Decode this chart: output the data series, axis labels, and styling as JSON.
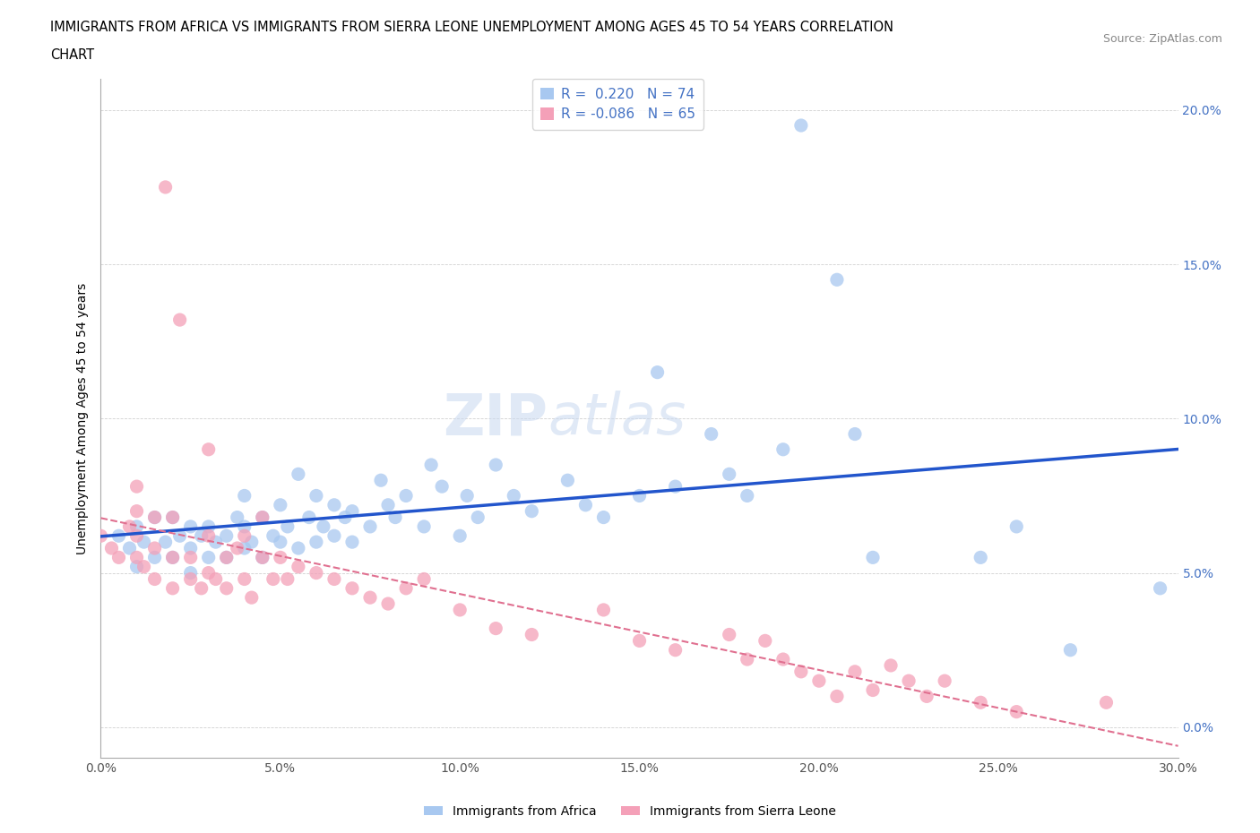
{
  "title_line1": "IMMIGRANTS FROM AFRICA VS IMMIGRANTS FROM SIERRA LEONE UNEMPLOYMENT AMONG AGES 45 TO 54 YEARS CORRELATION",
  "title_line2": "CHART",
  "source": "Source: ZipAtlas.com",
  "ylabel": "Unemployment Among Ages 45 to 54 years",
  "xlim": [
    0.0,
    0.3
  ],
  "ylim": [
    -0.01,
    0.21
  ],
  "xticks": [
    0.0,
    0.05,
    0.1,
    0.15,
    0.2,
    0.25,
    0.3
  ],
  "yticks": [
    0.0,
    0.05,
    0.1,
    0.15,
    0.2
  ],
  "xtick_labels": [
    "0.0%",
    "5.0%",
    "10.0%",
    "15.0%",
    "20.0%",
    "25.0%",
    "30.0%"
  ],
  "ytick_labels": [
    "0.0%",
    "5.0%",
    "10.0%",
    "15.0%",
    "20.0%"
  ],
  "color_africa": "#a8c8f0",
  "color_sierra": "#f4a0b8",
  "trendline_africa": "#2255cc",
  "trendline_sierra": "#e07090",
  "R_africa": 0.22,
  "N_africa": 74,
  "R_sierra": -0.086,
  "N_sierra": 65,
  "legend_label_africa": "Immigrants from Africa",
  "legend_label_sierra": "Immigrants from Sierra Leone",
  "watermark_zip": "ZIP",
  "watermark_atlas": "atlas",
  "africa_x": [
    0.005,
    0.008,
    0.01,
    0.01,
    0.012,
    0.015,
    0.015,
    0.018,
    0.02,
    0.02,
    0.022,
    0.025,
    0.025,
    0.025,
    0.028,
    0.03,
    0.03,
    0.032,
    0.035,
    0.035,
    0.038,
    0.04,
    0.04,
    0.04,
    0.042,
    0.045,
    0.045,
    0.048,
    0.05,
    0.05,
    0.052,
    0.055,
    0.055,
    0.058,
    0.06,
    0.06,
    0.062,
    0.065,
    0.065,
    0.068,
    0.07,
    0.07,
    0.075,
    0.078,
    0.08,
    0.082,
    0.085,
    0.09,
    0.092,
    0.095,
    0.1,
    0.102,
    0.105,
    0.11,
    0.115,
    0.12,
    0.13,
    0.135,
    0.14,
    0.15,
    0.155,
    0.16,
    0.17,
    0.175,
    0.18,
    0.19,
    0.195,
    0.205,
    0.21,
    0.215,
    0.245,
    0.255,
    0.27,
    0.295
  ],
  "africa_y": [
    0.062,
    0.058,
    0.065,
    0.052,
    0.06,
    0.055,
    0.068,
    0.06,
    0.055,
    0.068,
    0.062,
    0.05,
    0.058,
    0.065,
    0.062,
    0.055,
    0.065,
    0.06,
    0.055,
    0.062,
    0.068,
    0.058,
    0.065,
    0.075,
    0.06,
    0.055,
    0.068,
    0.062,
    0.06,
    0.072,
    0.065,
    0.058,
    0.082,
    0.068,
    0.06,
    0.075,
    0.065,
    0.062,
    0.072,
    0.068,
    0.06,
    0.07,
    0.065,
    0.08,
    0.072,
    0.068,
    0.075,
    0.065,
    0.085,
    0.078,
    0.062,
    0.075,
    0.068,
    0.085,
    0.075,
    0.07,
    0.08,
    0.072,
    0.068,
    0.075,
    0.115,
    0.078,
    0.095,
    0.082,
    0.075,
    0.09,
    0.195,
    0.145,
    0.095,
    0.055,
    0.055,
    0.065,
    0.025,
    0.045
  ],
  "sierra_x": [
    0.0,
    0.003,
    0.005,
    0.008,
    0.01,
    0.01,
    0.01,
    0.01,
    0.012,
    0.015,
    0.015,
    0.015,
    0.018,
    0.02,
    0.02,
    0.02,
    0.022,
    0.025,
    0.025,
    0.028,
    0.03,
    0.03,
    0.03,
    0.032,
    0.035,
    0.035,
    0.038,
    0.04,
    0.04,
    0.042,
    0.045,
    0.045,
    0.048,
    0.05,
    0.052,
    0.055,
    0.06,
    0.065,
    0.07,
    0.075,
    0.08,
    0.085,
    0.09,
    0.1,
    0.11,
    0.12,
    0.14,
    0.15,
    0.16,
    0.175,
    0.18,
    0.185,
    0.19,
    0.195,
    0.2,
    0.205,
    0.21,
    0.215,
    0.22,
    0.225,
    0.23,
    0.235,
    0.245,
    0.255,
    0.28
  ],
  "sierra_y": [
    0.062,
    0.058,
    0.055,
    0.065,
    0.055,
    0.062,
    0.07,
    0.078,
    0.052,
    0.048,
    0.058,
    0.068,
    0.175,
    0.045,
    0.055,
    0.068,
    0.132,
    0.048,
    0.055,
    0.045,
    0.05,
    0.062,
    0.09,
    0.048,
    0.045,
    0.055,
    0.058,
    0.048,
    0.062,
    0.042,
    0.055,
    0.068,
    0.048,
    0.055,
    0.048,
    0.052,
    0.05,
    0.048,
    0.045,
    0.042,
    0.04,
    0.045,
    0.048,
    0.038,
    0.032,
    0.03,
    0.038,
    0.028,
    0.025,
    0.03,
    0.022,
    0.028,
    0.022,
    0.018,
    0.015,
    0.01,
    0.018,
    0.012,
    0.02,
    0.015,
    0.01,
    0.015,
    0.008,
    0.005,
    0.008
  ]
}
